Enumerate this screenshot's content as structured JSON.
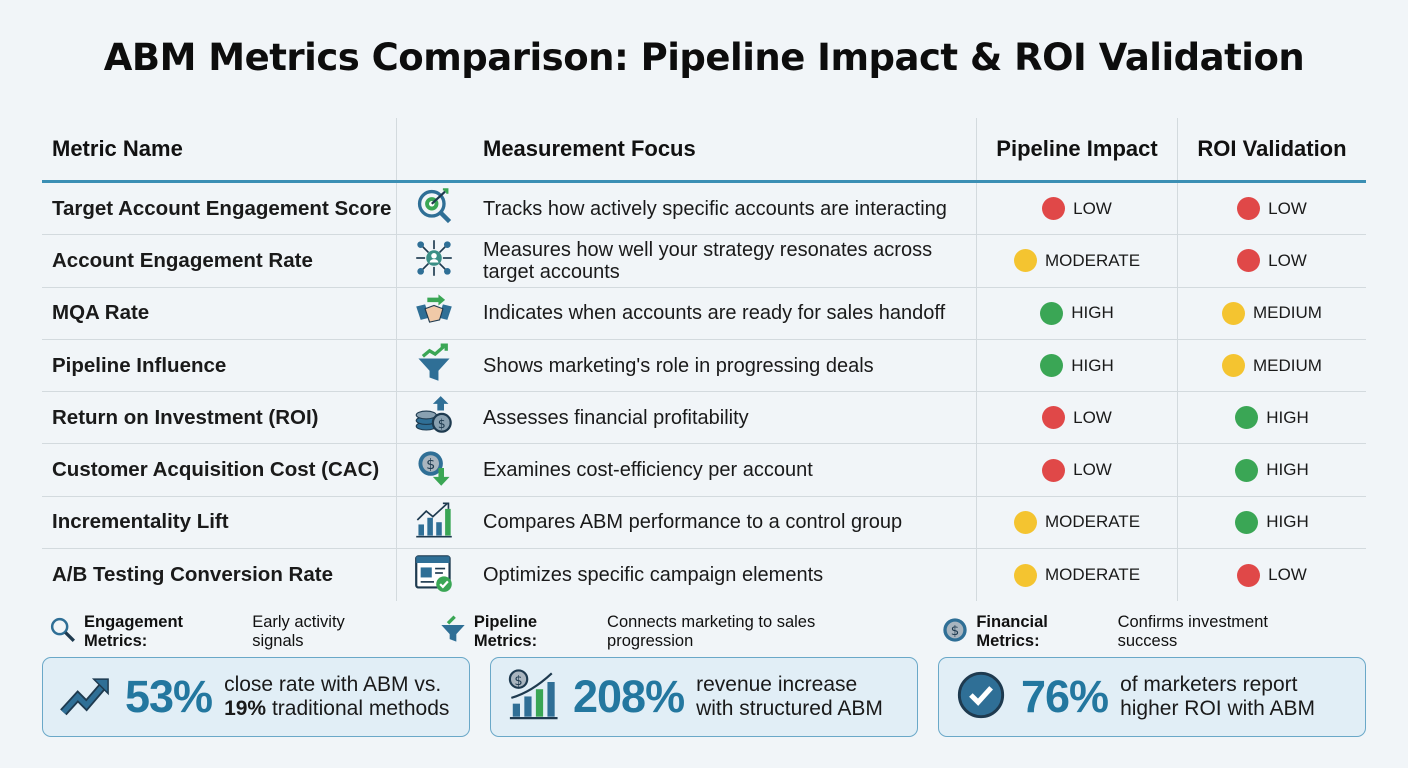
{
  "title": "ABM Metrics Comparison: Pipeline Impact & ROI Validation",
  "colors": {
    "accent": "#2a7ba6",
    "LOW": "#e04848",
    "MODERATE": "#f4c430",
    "MEDIUM": "#f4c430",
    "HIGH": "#3aa655"
  },
  "headers": {
    "metric": "Metric Name",
    "focus": "Measurement Focus",
    "pipeline": "Pipeline Impact",
    "roi": "ROI Validation"
  },
  "rows": [
    {
      "metric": "Target Account Engagement Score",
      "icon": "target-search-icon",
      "focus": "Tracks how actively specific accounts are interacting",
      "pipeline": "LOW",
      "roi": "LOW"
    },
    {
      "metric": "Account Engagement Rate",
      "icon": "network-user-icon",
      "focus": "Measures how well your strategy resonates across target accounts",
      "pipeline": "MODERATE",
      "roi": "LOW"
    },
    {
      "metric": "MQA Rate",
      "icon": "handshake-icon",
      "focus": "Indicates when accounts are ready for sales handoff",
      "pipeline": "HIGH",
      "roi": "MEDIUM"
    },
    {
      "metric": "Pipeline Influence",
      "icon": "funnel-growth-icon",
      "focus": "Shows marketing's role in progressing deals",
      "pipeline": "HIGH",
      "roi": "MEDIUM"
    },
    {
      "metric": "Return on Investment (ROI)",
      "icon": "coins-arrow-up-icon",
      "focus": "Assesses financial profitability",
      "pipeline": "LOW",
      "roi": "HIGH"
    },
    {
      "metric": "Customer Acquisition Cost (CAC)",
      "icon": "dollar-arrow-down-icon",
      "focus": "Examines cost-efficiency per account",
      "pipeline": "LOW",
      "roi": "HIGH"
    },
    {
      "metric": "Incrementality Lift",
      "icon": "bar-chart-growth-icon",
      "focus": "Compares ABM performance to a control group",
      "pipeline": "MODERATE",
      "roi": "HIGH"
    },
    {
      "metric": "A/B Testing Conversion Rate",
      "icon": "webpage-check-icon",
      "focus": "Optimizes specific campaign elements",
      "pipeline": "MODERATE",
      "roi": "LOW"
    }
  ],
  "legend": [
    {
      "icon": "search-icon",
      "label": "Engagement Metrics:",
      "text": "Early activity signals"
    },
    {
      "icon": "funnel-icon",
      "label": "Pipeline Metrics:",
      "text": "Connects marketing to sales progression"
    },
    {
      "icon": "dollar-coin-icon",
      "label": "Financial Metrics:",
      "text": "Confirms investment success"
    }
  ],
  "stats": [
    {
      "icon": "trend-up-icon",
      "value": "53%",
      "line1": "close rate with ABM vs.",
      "line2_bold": "19%",
      "line2": " traditional methods"
    },
    {
      "icon": "revenue-chart-icon",
      "value": "208%",
      "line1": "revenue increase",
      "line2_bold": "",
      "line2": "with structured ABM"
    },
    {
      "icon": "check-circle-icon",
      "value": "76%",
      "line1": "of marketers report",
      "line2_bold": "",
      "line2": "higher ROI with ABM"
    }
  ]
}
